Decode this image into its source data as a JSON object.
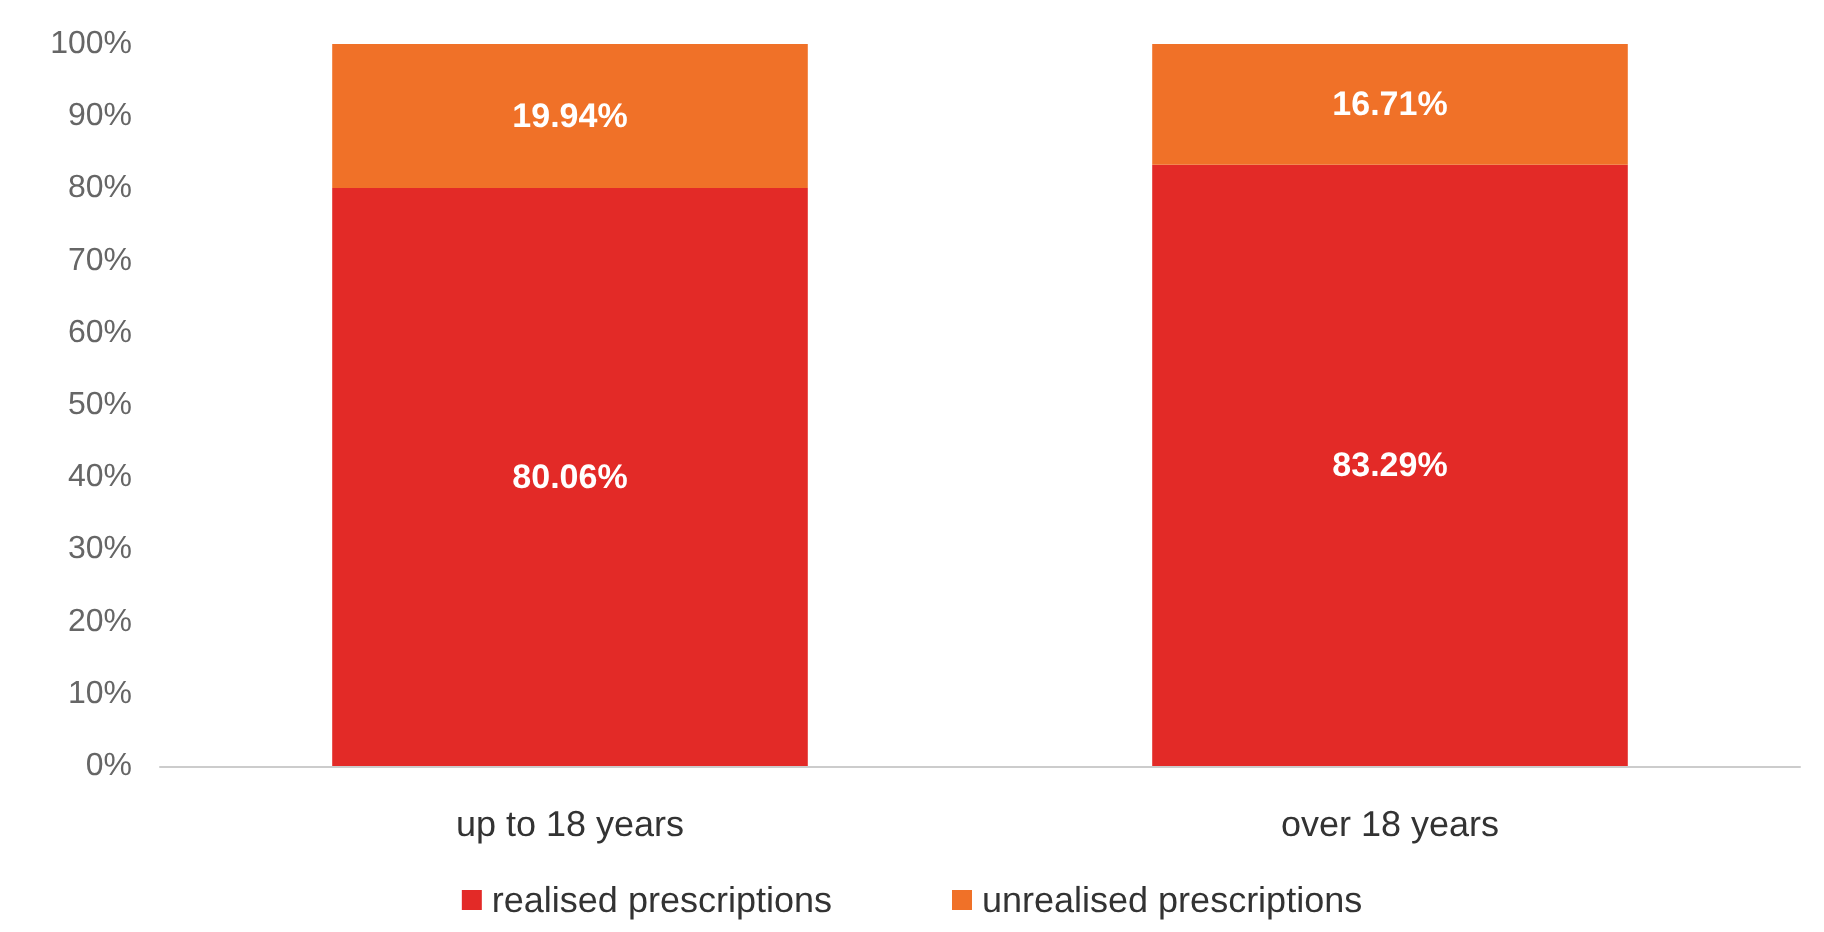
{
  "chart_data": {
    "type": "bar",
    "stacked": true,
    "categories": [
      "up to 18 years",
      "over 18 years"
    ],
    "series": [
      {
        "name": "realised prescriptions",
        "color": "#e32a27",
        "values": [
          80.06,
          83.29
        ],
        "value_labels": [
          "80.06%",
          "83.29%"
        ]
      },
      {
        "name": "unrealised prescriptions",
        "color": "#f07128",
        "values": [
          19.94,
          16.71
        ],
        "value_labels": [
          "19.94%",
          "16.71%"
        ]
      }
    ],
    "ylim": [
      0,
      100
    ],
    "yticks": [
      {
        "value": 0,
        "label": "0%"
      },
      {
        "value": 10,
        "label": "10%"
      },
      {
        "value": 20,
        "label": "20%"
      },
      {
        "value": 30,
        "label": "30%"
      },
      {
        "value": 40,
        "label": "40%"
      },
      {
        "value": 50,
        "label": "50%"
      },
      {
        "value": 60,
        "label": "60%"
      },
      {
        "value": 70,
        "label": "70%"
      },
      {
        "value": 80,
        "label": "80%"
      },
      {
        "value": 90,
        "label": "90%"
      },
      {
        "value": 100,
        "label": "100%"
      }
    ],
    "grid": false,
    "legend": "bottom"
  }
}
